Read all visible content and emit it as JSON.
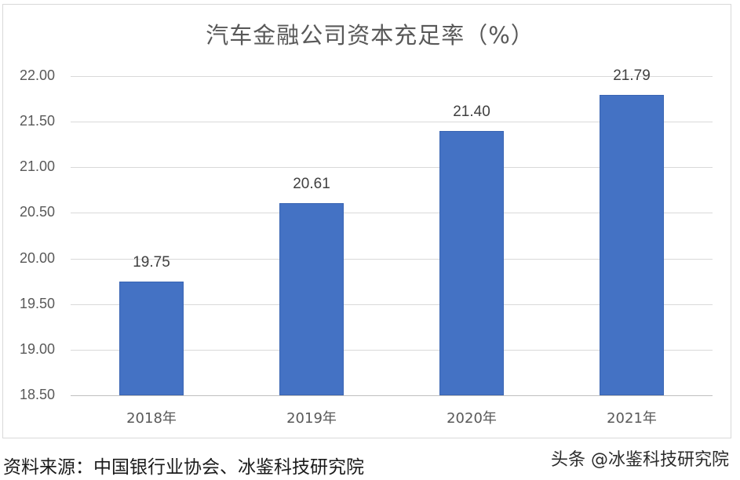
{
  "chart_data": {
    "type": "bar",
    "title": "汽车金融公司资本充足率（%）",
    "categories": [
      "2018年",
      "2019年",
      "2020年",
      "2021年"
    ],
    "values": [
      19.75,
      20.61,
      21.4,
      21.79
    ],
    "value_labels": [
      "19.75",
      "20.61",
      "21.40",
      "21.79"
    ],
    "xlabel": "",
    "ylabel": "",
    "ylim": [
      18.5,
      22.0
    ],
    "yticks": [
      "22.00",
      "21.50",
      "21.00",
      "20.50",
      "20.00",
      "19.50",
      "19.00",
      "18.50"
    ],
    "grid": true,
    "legend": "none",
    "bar_color": "#4472c4"
  },
  "footer": {
    "source": "资料来源：中国银行业协会、冰鉴科技研究院",
    "watermark": "头条 @冰鉴科技研究院"
  }
}
